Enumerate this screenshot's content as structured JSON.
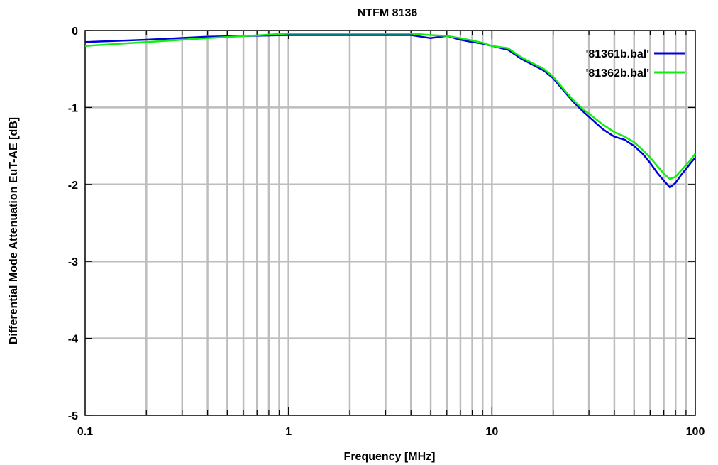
{
  "chart_data": {
    "type": "line",
    "title": "NTFM 8136",
    "xlabel": "Frequency [MHz]",
    "ylabel": "Differential Mode Attenuation EuT-AE [dB]",
    "x_scale": "log",
    "xlim": [
      0.1,
      100
    ],
    "ylim": [
      -5,
      0
    ],
    "x_ticks": [
      {
        "value": 0.1,
        "label": "0.1"
      },
      {
        "value": 1,
        "label": "1"
      },
      {
        "value": 10,
        "label": "10"
      },
      {
        "value": 100,
        "label": "100"
      }
    ],
    "y_ticks": [
      {
        "value": 0,
        "label": "0"
      },
      {
        "value": -1,
        "label": "-1"
      },
      {
        "value": -2,
        "label": "-2"
      },
      {
        "value": -3,
        "label": "-3"
      },
      {
        "value": -4,
        "label": "-4"
      },
      {
        "value": -5,
        "label": "-5"
      }
    ],
    "grid": true,
    "legend_position": "top-right",
    "series": [
      {
        "name": "'81361b.bal'",
        "color": "#0000dd",
        "x": [
          0.1,
          0.2,
          0.4,
          1,
          2,
          4,
          5,
          6,
          7,
          8,
          9,
          10,
          12,
          14,
          16,
          18,
          20,
          22,
          25,
          28,
          30,
          35,
          40,
          45,
          50,
          55,
          60,
          65,
          70,
          75,
          80,
          85,
          90,
          95,
          100
        ],
        "values": [
          -0.15,
          -0.12,
          -0.08,
          -0.06,
          -0.06,
          -0.06,
          -0.1,
          -0.07,
          -0.12,
          -0.15,
          -0.17,
          -0.2,
          -0.25,
          -0.37,
          -0.45,
          -0.52,
          -0.62,
          -0.75,
          -0.92,
          -1.05,
          -1.12,
          -1.28,
          -1.38,
          -1.42,
          -1.5,
          -1.6,
          -1.72,
          -1.85,
          -1.95,
          -2.04,
          -1.98,
          -1.88,
          -1.8,
          -1.72,
          -1.65
        ]
      },
      {
        "name": "'81362b.bal'",
        "color": "#11ee11",
        "x": [
          0.1,
          0.2,
          0.4,
          1,
          2,
          4,
          5,
          6,
          7,
          8,
          9,
          10,
          12,
          14,
          16,
          18,
          20,
          22,
          25,
          28,
          30,
          35,
          40,
          45,
          50,
          55,
          60,
          65,
          70,
          75,
          80,
          85,
          90,
          95,
          100
        ],
        "values": [
          -0.2,
          -0.15,
          -0.1,
          -0.04,
          -0.04,
          -0.04,
          -0.06,
          -0.07,
          -0.1,
          -0.13,
          -0.16,
          -0.2,
          -0.23,
          -0.35,
          -0.43,
          -0.5,
          -0.6,
          -0.73,
          -0.9,
          -1.02,
          -1.08,
          -1.22,
          -1.32,
          -1.38,
          -1.45,
          -1.55,
          -1.65,
          -1.76,
          -1.86,
          -1.93,
          -1.9,
          -1.82,
          -1.75,
          -1.68,
          -1.6
        ]
      }
    ]
  }
}
